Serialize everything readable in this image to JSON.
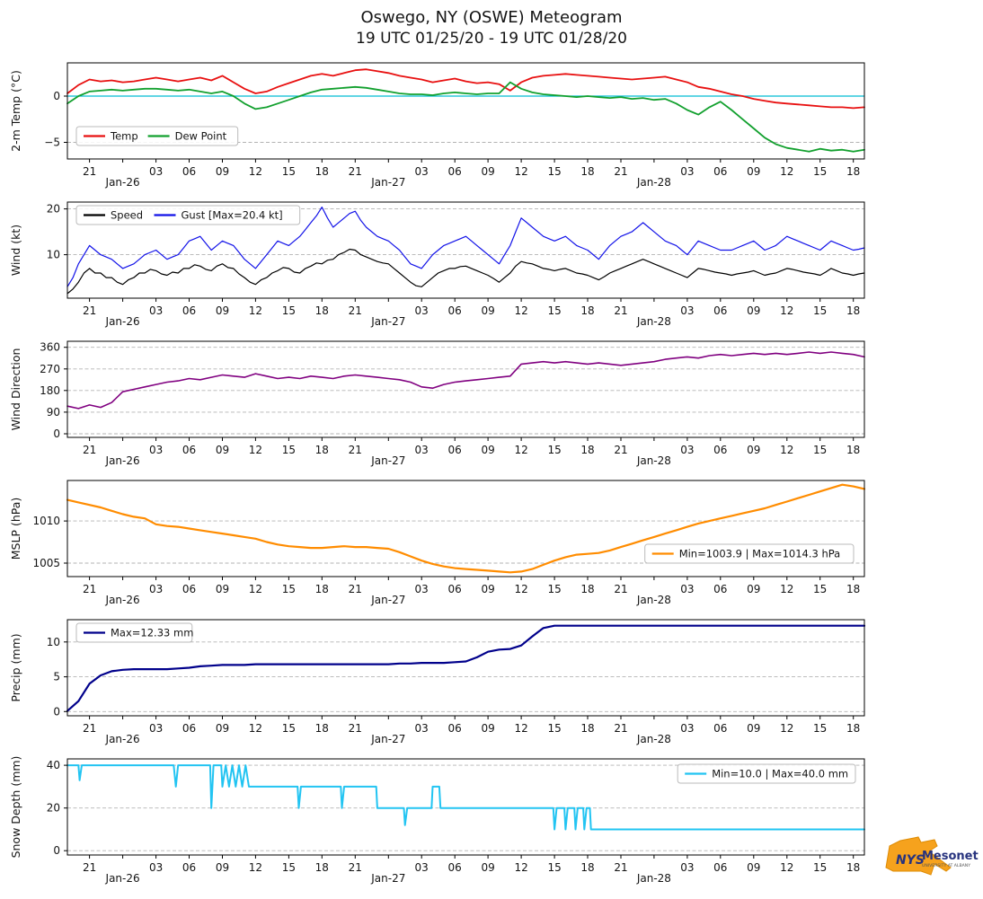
{
  "header": {
    "title": "Oswego, NY (OSWE) Meteogram",
    "subtitle": "19 UTC 01/25/20 - 19 UTC 01/28/20"
  },
  "x_axis": {
    "t_min": 0,
    "t_max": 72,
    "ticks": [
      {
        "t": 2,
        "label": "21"
      },
      {
        "t": 5,
        "label": "Jan-26",
        "date": true
      },
      {
        "t": 8,
        "label": "03"
      },
      {
        "t": 11,
        "label": "06"
      },
      {
        "t": 14,
        "label": "09"
      },
      {
        "t": 17,
        "label": "12"
      },
      {
        "t": 20,
        "label": "15"
      },
      {
        "t": 23,
        "label": "18"
      },
      {
        "t": 26,
        "label": "21"
      },
      {
        "t": 29,
        "label": "Jan-27",
        "date": true
      },
      {
        "t": 32,
        "label": "03"
      },
      {
        "t": 35,
        "label": "06"
      },
      {
        "t": 38,
        "label": "09"
      },
      {
        "t": 41,
        "label": "12"
      },
      {
        "t": 44,
        "label": "15"
      },
      {
        "t": 47,
        "label": "18"
      },
      {
        "t": 50,
        "label": "21"
      },
      {
        "t": 53,
        "label": "Jan-28",
        "date": true
      },
      {
        "t": 56,
        "label": "03"
      },
      {
        "t": 59,
        "label": "06"
      },
      {
        "t": 62,
        "label": "09"
      },
      {
        "t": 65,
        "label": "12"
      },
      {
        "t": 68,
        "label": "15"
      },
      {
        "t": 71,
        "label": "18"
      }
    ]
  },
  "chart_data": [
    {
      "type": "line",
      "ylabel": "2-m Temp (°C)",
      "ylim": [
        -6.8,
        3.6
      ],
      "yticks": [
        0,
        -5
      ],
      "grid": true,
      "ref_line": {
        "y": 0,
        "color": "#00bcd4"
      },
      "series": [
        {
          "name": "Temp",
          "color": "#e81010",
          "width": 1.8,
          "x_step": 1,
          "values": [
            0.3,
            1.2,
            1.8,
            1.6,
            1.7,
            1.5,
            1.6,
            1.8,
            2.0,
            1.8,
            1.6,
            1.8,
            2.0,
            1.7,
            2.2,
            1.5,
            0.8,
            0.3,
            0.5,
            1.0,
            1.4,
            1.8,
            2.2,
            2.4,
            2.2,
            2.5,
            2.8,
            2.9,
            2.7,
            2.5,
            2.2,
            2.0,
            1.8,
            1.5,
            1.7,
            1.9,
            1.6,
            1.4,
            1.5,
            1.3,
            0.6,
            1.5,
            2.0,
            2.2,
            2.3,
            2.4,
            2.3,
            2.2,
            2.1,
            2.0,
            1.9,
            1.8,
            1.9,
            2.0,
            2.1,
            1.8,
            1.5,
            1.0,
            0.8,
            0.5,
            0.2,
            0.0,
            -0.3,
            -0.5,
            -0.7,
            -0.8,
            -0.9,
            -1.0,
            -1.1,
            -1.2,
            -1.2,
            -1.3,
            -1.2
          ]
        },
        {
          "name": "Dew Point",
          "color": "#12a02e",
          "width": 1.8,
          "x_step": 1,
          "values": [
            -0.8,
            0.0,
            0.5,
            0.6,
            0.7,
            0.6,
            0.7,
            0.8,
            0.8,
            0.7,
            0.6,
            0.7,
            0.5,
            0.3,
            0.5,
            0.0,
            -0.8,
            -1.4,
            -1.2,
            -0.8,
            -0.4,
            0.0,
            0.4,
            0.7,
            0.8,
            0.9,
            1.0,
            0.9,
            0.7,
            0.5,
            0.3,
            0.2,
            0.2,
            0.1,
            0.3,
            0.4,
            0.3,
            0.2,
            0.3,
            0.3,
            1.5,
            0.8,
            0.4,
            0.2,
            0.1,
            0.0,
            -0.1,
            0.0,
            -0.1,
            -0.2,
            -0.1,
            -0.3,
            -0.2,
            -0.4,
            -0.3,
            -0.8,
            -1.5,
            -2.0,
            -1.2,
            -0.6,
            -1.5,
            -2.5,
            -3.5,
            -4.5,
            -5.2,
            -5.6,
            -5.8,
            -6.0,
            -5.7,
            -5.9,
            -5.8,
            -6.0,
            -5.8
          ]
        }
      ],
      "legend": {
        "pos": "wlow",
        "items": [
          {
            "label": "Temp",
            "series": 0
          },
          {
            "label": "Dew Point",
            "series": 1
          }
        ]
      }
    },
    {
      "type": "line",
      "ylabel": "Wind (kt)",
      "ylim": [
        0.5,
        21.5
      ],
      "yticks": [
        10,
        20
      ],
      "grid": true,
      "series": [
        {
          "name": "Speed",
          "color": "#000000",
          "width": 1.2,
          "x_step": 0.5,
          "values": [
            1.5,
            2.5,
            4,
            6,
            7,
            6,
            6,
            5,
            5,
            4,
            3.5,
            4.5,
            5,
            6,
            6,
            6.8,
            6.5,
            5.8,
            5.5,
            6.2,
            6,
            7,
            7,
            7.8,
            7.5,
            6.8,
            6.5,
            7.5,
            8,
            7.2,
            7,
            5.8,
            5,
            4,
            3.5,
            4.5,
            5,
            6,
            6.5,
            7.2,
            7,
            6.2,
            6,
            7,
            7.5,
            8.2,
            8,
            8.8,
            9,
            10,
            10.5,
            11.2,
            11,
            10,
            9.5,
            9,
            8.5,
            8.2,
            8,
            7,
            6,
            5,
            4,
            3.2,
            3,
            4,
            5,
            6,
            6.5,
            7,
            7,
            7.4,
            7.5,
            7,
            6.5,
            6,
            5.5,
            4.8,
            4,
            5,
            6,
            7.5,
            8.5,
            8.2,
            8,
            7.5,
            7,
            6.8,
            6.5,
            6.8,
            7,
            6.5,
            6,
            5.8,
            5.5,
            5,
            4.5,
            5.2,
            6,
            6.5,
            7,
            7.5,
            8,
            8.5,
            9,
            8.5,
            8,
            7.5,
            7,
            6.5,
            6,
            5.5,
            5,
            6,
            7,
            6.8,
            6.5,
            6.2,
            6,
            5.8,
            5.5,
            5.8,
            6,
            6.2,
            6.5,
            6,
            5.5,
            5.8,
            6,
            6.5,
            7,
            6.8,
            6.5,
            6.2,
            6,
            5.8,
            5.5,
            6.2,
            7,
            6.5,
            6,
            5.8,
            5.5,
            5.8,
            6
          ]
        },
        {
          "name": "Gust",
          "color": "#1212e8",
          "width": 1.2,
          "x_step": 0.5,
          "values": [
            3,
            5,
            8,
            10,
            12,
            11,
            10,
            9.5,
            9,
            8,
            7,
            7.5,
            8,
            9,
            10,
            10.5,
            11,
            10,
            9,
            9.5,
            10,
            11.5,
            13,
            13.5,
            14,
            12.5,
            11,
            12,
            13,
            12.5,
            12,
            10.5,
            9,
            8,
            7,
            8.5,
            10,
            11.5,
            13,
            12.5,
            12,
            13,
            14,
            15.5,
            17,
            18.5,
            20.4,
            18,
            16,
            17,
            18,
            19,
            19.5,
            17.5,
            16,
            15,
            14,
            13.5,
            13,
            12,
            11,
            9.5,
            8,
            7.5,
            7,
            8.5,
            10,
            11,
            12,
            12.5,
            13,
            13.5,
            14,
            13,
            12,
            11,
            10,
            9,
            8,
            10,
            12,
            15,
            18,
            17,
            16,
            15,
            14,
            13.5,
            13,
            13.5,
            14,
            13,
            12,
            11.5,
            11,
            10,
            9,
            10.5,
            12,
            13,
            14,
            14.5,
            15,
            16,
            17,
            16,
            15,
            14,
            13,
            12.5,
            12,
            11,
            10,
            11.5,
            13,
            12.5,
            12,
            11.5,
            11,
            11,
            11,
            11.5,
            12,
            12.5,
            13,
            12,
            11,
            11.5,
            12,
            13,
            14,
            13.5,
            13,
            12.5,
            12,
            11.5,
            11,
            12,
            13,
            12.5,
            12,
            11.5,
            11,
            11.2,
            11.5
          ]
        }
      ],
      "legend": {
        "pos": "nw",
        "items": [
          {
            "label": "Speed",
            "series": 0
          },
          {
            "label": "Gust [Max=20.4 kt]",
            "series": 1
          }
        ]
      }
    },
    {
      "type": "line",
      "ylabel": "Wind Direction",
      "ylim": [
        -15,
        385
      ],
      "yticks": [
        0,
        90,
        180,
        270,
        360
      ],
      "grid": true,
      "series": [
        {
          "name": "Direction",
          "color": "#800080",
          "width": 1.6,
          "x_step": 1,
          "values": [
            115,
            105,
            120,
            110,
            130,
            175,
            185,
            195,
            205,
            215,
            220,
            230,
            225,
            235,
            245,
            240,
            235,
            250,
            240,
            230,
            235,
            230,
            240,
            235,
            230,
            240,
            245,
            240,
            235,
            230,
            225,
            215,
            195,
            190,
            205,
            215,
            220,
            225,
            230,
            235,
            240,
            290,
            295,
            300,
            295,
            300,
            295,
            290,
            295,
            290,
            285,
            290,
            295,
            300,
            310,
            315,
            320,
            315,
            325,
            330,
            325,
            330,
            335,
            330,
            335,
            330,
            335,
            340,
            335,
            340,
            335,
            330,
            320
          ]
        }
      ]
    },
    {
      "type": "line",
      "ylabel": "MSLP (hPa)",
      "ylim": [
        1003.4,
        1014.8
      ],
      "yticks": [
        1005,
        1010
      ],
      "grid": true,
      "series": [
        {
          "name": "MSLP",
          "color": "#ff8c00",
          "width": 2.2,
          "x_step": 1,
          "values": [
            1012.5,
            1012.2,
            1011.9,
            1011.6,
            1011.2,
            1010.8,
            1010.5,
            1010.3,
            1009.6,
            1009.4,
            1009.3,
            1009.1,
            1008.9,
            1008.7,
            1008.5,
            1008.3,
            1008.1,
            1007.9,
            1007.5,
            1007.2,
            1007.0,
            1006.9,
            1006.8,
            1006.8,
            1006.9,
            1007.0,
            1006.9,
            1006.9,
            1006.8,
            1006.7,
            1006.3,
            1005.8,
            1005.3,
            1004.9,
            1004.6,
            1004.4,
            1004.3,
            1004.2,
            1004.1,
            1004.0,
            1003.9,
            1004.0,
            1004.3,
            1004.8,
            1005.3,
            1005.7,
            1006.0,
            1006.1,
            1006.2,
            1006.5,
            1006.9,
            1007.3,
            1007.7,
            1008.1,
            1008.5,
            1008.9,
            1009.3,
            1009.7,
            1010.0,
            1010.3,
            1010.6,
            1010.9,
            1011.2,
            1011.5,
            1011.9,
            1012.3,
            1012.7,
            1013.1,
            1013.5,
            1013.9,
            1014.3,
            1014.1,
            1013.8
          ]
        }
      ],
      "legend": {
        "pos": "elow",
        "items": [
          {
            "label": "Min=1003.9 | Max=1014.3 hPa",
            "series": 0
          }
        ]
      }
    },
    {
      "type": "line",
      "ylabel": "Precip (mm)",
      "ylim": [
        -0.6,
        13.2
      ],
      "yticks": [
        0,
        5,
        10
      ],
      "grid": true,
      "series": [
        {
          "name": "Precip",
          "color": "#00008b",
          "width": 2.2,
          "x_step": 1,
          "values": [
            0.1,
            1.5,
            4.0,
            5.2,
            5.8,
            6.0,
            6.1,
            6.1,
            6.1,
            6.1,
            6.2,
            6.3,
            6.5,
            6.6,
            6.7,
            6.7,
            6.7,
            6.8,
            6.8,
            6.8,
            6.8,
            6.8,
            6.8,
            6.8,
            6.8,
            6.8,
            6.8,
            6.8,
            6.8,
            6.8,
            6.9,
            6.9,
            7.0,
            7.0,
            7.0,
            7.1,
            7.2,
            7.8,
            8.6,
            8.9,
            9.0,
            9.5,
            10.8,
            12.0,
            12.33,
            12.33,
            12.33,
            12.33,
            12.33,
            12.33,
            12.33,
            12.33,
            12.33,
            12.33,
            12.33,
            12.33,
            12.33,
            12.33,
            12.33,
            12.33,
            12.33,
            12.33,
            12.33,
            12.33,
            12.33,
            12.33,
            12.33,
            12.33,
            12.33,
            12.33,
            12.33,
            12.33,
            12.33
          ]
        }
      ],
      "legend": {
        "pos": "nw",
        "items": [
          {
            "label": "Max=12.33 mm",
            "series": 0
          }
        ]
      }
    },
    {
      "type": "line",
      "ylabel": "Snow Depth (mm)",
      "ylim": [
        -2,
        43
      ],
      "yticks": [
        0,
        20,
        40
      ],
      "grid": true,
      "series": [
        {
          "name": "Snow Depth",
          "color": "#22c4f2",
          "width": 2.0,
          "points": [
            [
              0,
              40
            ],
            [
              1.0,
              40
            ],
            [
              1.1,
              33
            ],
            [
              1.3,
              40
            ],
            [
              9.6,
              40
            ],
            [
              9.8,
              30
            ],
            [
              10.0,
              40
            ],
            [
              12.9,
              40
            ],
            [
              13.0,
              20
            ],
            [
              13.2,
              40
            ],
            [
              13.9,
              40
            ],
            [
              14.0,
              30
            ],
            [
              14.3,
              40
            ],
            [
              14.6,
              30
            ],
            [
              14.9,
              40
            ],
            [
              15.2,
              30
            ],
            [
              15.5,
              40
            ],
            [
              15.8,
              30
            ],
            [
              16.1,
              40
            ],
            [
              16.4,
              30
            ],
            [
              20.8,
              30
            ],
            [
              20.9,
              20
            ],
            [
              21.1,
              30
            ],
            [
              24.7,
              30
            ],
            [
              24.8,
              20
            ],
            [
              25.0,
              30
            ],
            [
              27.9,
              30
            ],
            [
              28.0,
              20
            ],
            [
              30.4,
              20
            ],
            [
              30.5,
              12
            ],
            [
              30.7,
              20
            ],
            [
              32.9,
              20
            ],
            [
              33.0,
              30
            ],
            [
              33.6,
              30
            ],
            [
              33.7,
              20
            ],
            [
              43.9,
              20
            ],
            [
              44.0,
              10
            ],
            [
              44.2,
              20
            ],
            [
              44.9,
              20
            ],
            [
              45.0,
              10
            ],
            [
              45.2,
              20
            ],
            [
              45.8,
              20
            ],
            [
              45.9,
              10
            ],
            [
              46.1,
              20
            ],
            [
              46.6,
              20
            ],
            [
              46.7,
              10
            ],
            [
              46.9,
              20
            ],
            [
              47.2,
              20
            ],
            [
              47.3,
              10
            ],
            [
              72,
              10
            ]
          ]
        }
      ],
      "legend": {
        "pos": "ne",
        "items": [
          {
            "label": "Min=10.0 | Max=40.0 mm",
            "series": 0
          }
        ]
      }
    }
  ],
  "logo": {
    "nys": "NYS",
    "mesonet": "Mesonet",
    "tagline": "UNIVERSITY AT ALBANY",
    "state_color": "#f6a21d",
    "text_color": "#27337e"
  }
}
